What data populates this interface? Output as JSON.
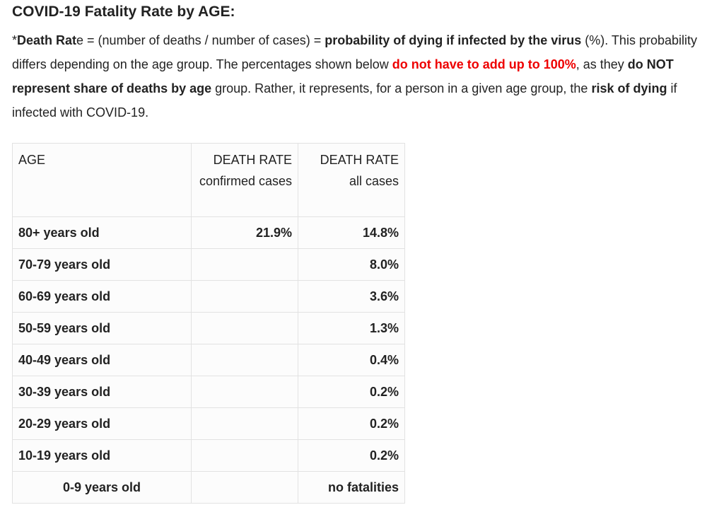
{
  "title": "COVID-19 Fatality Rate by AGE:",
  "intro": [
    "*",
    "Death Rat",
    "e = (number of deaths / number of cases) = ",
    "probability of dying if infected by the virus",
    " (%). This probability differs depending on the age group. The percentages shown below ",
    "do not have to add up to 100%",
    ", as they ",
    "do NOT represent share of deaths by age",
    " group. Rather, it represents, for a person in a given age group, the ",
    "risk of dying",
    " if infected with COVID-19."
  ],
  "table": {
    "header": [
      "AGE",
      "DEATH RATE confirmed cases",
      "DEATH RATE all cases"
    ],
    "rows": [
      [
        "80+ years old",
        "21.9%",
        "14.8%"
      ],
      [
        "70-79 years old",
        null,
        "8.0%"
      ],
      [
        "60-69 years old",
        null,
        "3.6%"
      ],
      [
        "50-59 years old",
        null,
        "1.3%"
      ],
      [
        "40-49 years old",
        null,
        "0.4%"
      ],
      [
        "30-39 years old",
        null,
        "0.2%"
      ],
      [
        "20-29 years old",
        null,
        "0.2%"
      ],
      [
        "10-19 years old",
        null,
        "0.2%"
      ],
      [
        "0-9 years old",
        null,
        "no fatalities"
      ]
    ]
  }
}
